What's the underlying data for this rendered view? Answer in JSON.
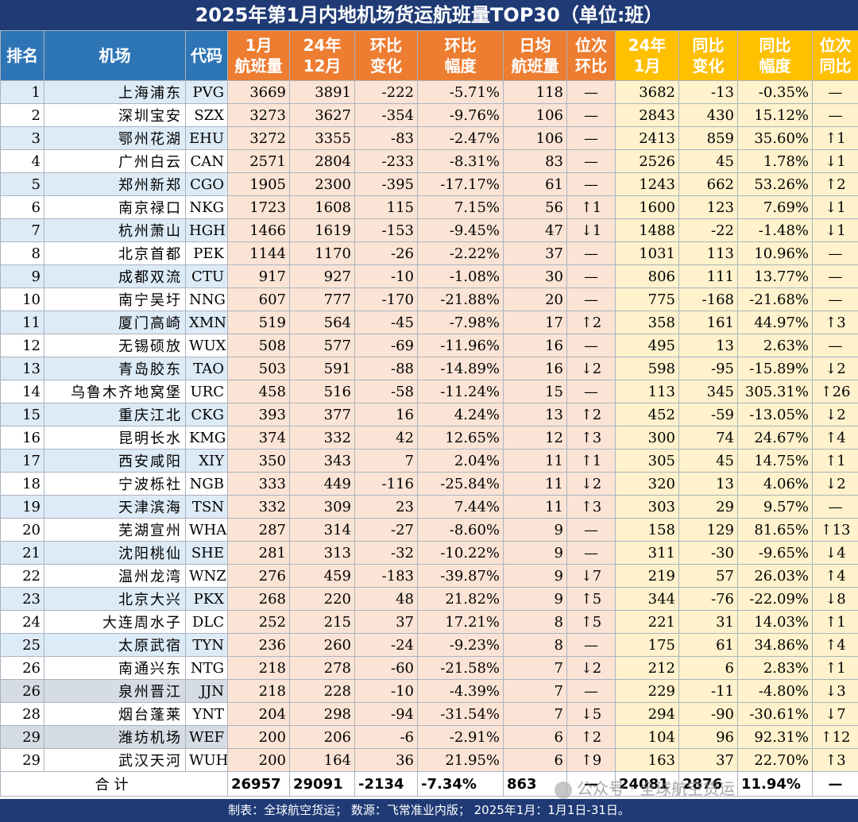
{
  "title": "2025年第1月内地机场货运航班量TOP30（单位:班）",
  "headers": [
    "排名",
    "机场",
    "代码",
    "1月|航班量",
    "24年|12月",
    "环比|变化",
    "环比|幅度",
    "日均|航班量",
    "位次|环比",
    "24年|1月",
    "同比|变化",
    "同比|幅度",
    "位次|同比"
  ],
  "rows": [
    {
      "rank": "1",
      "name": "上海浦东",
      "code": "PVG",
      "jan": "3669",
      "dec": "3891",
      "mom_chg": "-222",
      "mom_pct": "-5.71%",
      "daily": "118",
      "mom_rank": "—",
      "jan24": "3682",
      "yoy_chg": "-13",
      "yoy_pct": "-0.35%",
      "yoy_rank": "—"
    },
    {
      "rank": "2",
      "name": "深圳宝安",
      "code": "SZX",
      "jan": "3273",
      "dec": "3627",
      "mom_chg": "-354",
      "mom_pct": "-9.76%",
      "daily": "106",
      "mom_rank": "—",
      "jan24": "2843",
      "yoy_chg": "430",
      "yoy_pct": "15.12%",
      "yoy_rank": "—"
    },
    {
      "rank": "3",
      "name": "鄂州花湖",
      "code": "EHU",
      "jan": "3272",
      "dec": "3355",
      "mom_chg": "-83",
      "mom_pct": "-2.47%",
      "daily": "106",
      "mom_rank": "—",
      "jan24": "2413",
      "yoy_chg": "859",
      "yoy_pct": "35.60%",
      "yoy_rank": "↑1"
    },
    {
      "rank": "4",
      "name": "广州白云",
      "code": "CAN",
      "jan": "2571",
      "dec": "2804",
      "mom_chg": "-233",
      "mom_pct": "-8.31%",
      "daily": "83",
      "mom_rank": "—",
      "jan24": "2526",
      "yoy_chg": "45",
      "yoy_pct": "1.78%",
      "yoy_rank": "↓1"
    },
    {
      "rank": "5",
      "name": "郑州新郑",
      "code": "CGO",
      "jan": "1905",
      "dec": "2300",
      "mom_chg": "-395",
      "mom_pct": "-17.17%",
      "daily": "61",
      "mom_rank": "—",
      "jan24": "1243",
      "yoy_chg": "662",
      "yoy_pct": "53.26%",
      "yoy_rank": "↑2"
    },
    {
      "rank": "6",
      "name": "南京禄口",
      "code": "NKG",
      "jan": "1723",
      "dec": "1608",
      "mom_chg": "115",
      "mom_pct": "7.15%",
      "daily": "56",
      "mom_rank": "↑1",
      "jan24": "1600",
      "yoy_chg": "123",
      "yoy_pct": "7.69%",
      "yoy_rank": "↓1"
    },
    {
      "rank": "7",
      "name": "杭州萧山",
      "code": "HGH",
      "jan": "1466",
      "dec": "1619",
      "mom_chg": "-153",
      "mom_pct": "-9.45%",
      "daily": "47",
      "mom_rank": "↓1",
      "jan24": "1488",
      "yoy_chg": "-22",
      "yoy_pct": "-1.48%",
      "yoy_rank": "↓1"
    },
    {
      "rank": "8",
      "name": "北京首都",
      "code": "PEK",
      "jan": "1144",
      "dec": "1170",
      "mom_chg": "-26",
      "mom_pct": "-2.22%",
      "daily": "37",
      "mom_rank": "—",
      "jan24": "1031",
      "yoy_chg": "113",
      "yoy_pct": "10.96%",
      "yoy_rank": "—"
    },
    {
      "rank": "9",
      "name": "成都双流",
      "code": "CTU",
      "jan": "917",
      "dec": "927",
      "mom_chg": "-10",
      "mom_pct": "-1.08%",
      "daily": "30",
      "mom_rank": "—",
      "jan24": "806",
      "yoy_chg": "111",
      "yoy_pct": "13.77%",
      "yoy_rank": "—"
    },
    {
      "rank": "10",
      "name": "南宁吴圩",
      "code": "NNG",
      "jan": "607",
      "dec": "777",
      "mom_chg": "-170",
      "mom_pct": "-21.88%",
      "daily": "20",
      "mom_rank": "—",
      "jan24": "775",
      "yoy_chg": "-168",
      "yoy_pct": "-21.68%",
      "yoy_rank": "—"
    },
    {
      "rank": "11",
      "name": "厦门高崎",
      "code": "XMN",
      "jan": "519",
      "dec": "564",
      "mom_chg": "-45",
      "mom_pct": "-7.98%",
      "daily": "17",
      "mom_rank": "↑2",
      "jan24": "358",
      "yoy_chg": "161",
      "yoy_pct": "44.97%",
      "yoy_rank": "↑3"
    },
    {
      "rank": "12",
      "name": "无锡硕放",
      "code": "WUX",
      "jan": "508",
      "dec": "577",
      "mom_chg": "-69",
      "mom_pct": "-11.96%",
      "daily": "16",
      "mom_rank": "—",
      "jan24": "495",
      "yoy_chg": "13",
      "yoy_pct": "2.63%",
      "yoy_rank": "—"
    },
    {
      "rank": "13",
      "name": "青岛胶东",
      "code": "TAO",
      "jan": "503",
      "dec": "591",
      "mom_chg": "-88",
      "mom_pct": "-14.89%",
      "daily": "16",
      "mom_rank": "↓2",
      "jan24": "598",
      "yoy_chg": "-95",
      "yoy_pct": "-15.89%",
      "yoy_rank": "↓2"
    },
    {
      "rank": "14",
      "name": "乌鲁木齐地窝堡",
      "code": "URC",
      "jan": "458",
      "dec": "516",
      "mom_chg": "-58",
      "mom_pct": "-11.24%",
      "daily": "15",
      "mom_rank": "—",
      "jan24": "113",
      "yoy_chg": "345",
      "yoy_pct": "305.31%",
      "yoy_rank": "↑26"
    },
    {
      "rank": "15",
      "name": "重庆江北",
      "code": "CKG",
      "jan": "393",
      "dec": "377",
      "mom_chg": "16",
      "mom_pct": "4.24%",
      "daily": "13",
      "mom_rank": "↑2",
      "jan24": "452",
      "yoy_chg": "-59",
      "yoy_pct": "-13.05%",
      "yoy_rank": "↓2"
    },
    {
      "rank": "16",
      "name": "昆明长水",
      "code": "KMG",
      "jan": "374",
      "dec": "332",
      "mom_chg": "42",
      "mom_pct": "12.65%",
      "daily": "12",
      "mom_rank": "↑3",
      "jan24": "300",
      "yoy_chg": "74",
      "yoy_pct": "24.67%",
      "yoy_rank": "↑4"
    },
    {
      "rank": "17",
      "name": "西安咸阳",
      "code": "XIY",
      "jan": "350",
      "dec": "343",
      "mom_chg": "7",
      "mom_pct": "2.04%",
      "daily": "11",
      "mom_rank": "↑1",
      "jan24": "305",
      "yoy_chg": "45",
      "yoy_pct": "14.75%",
      "yoy_rank": "↑1"
    },
    {
      "rank": "18",
      "name": "宁波栎社",
      "code": "NGB",
      "jan": "333",
      "dec": "449",
      "mom_chg": "-116",
      "mom_pct": "-25.84%",
      "daily": "11",
      "mom_rank": "↓2",
      "jan24": "320",
      "yoy_chg": "13",
      "yoy_pct": "4.06%",
      "yoy_rank": "↓2"
    },
    {
      "rank": "19",
      "name": "天津滨海",
      "code": "TSN",
      "jan": "332",
      "dec": "309",
      "mom_chg": "23",
      "mom_pct": "7.44%",
      "daily": "11",
      "mom_rank": "↑3",
      "jan24": "303",
      "yoy_chg": "29",
      "yoy_pct": "9.57%",
      "yoy_rank": "—"
    },
    {
      "rank": "20",
      "name": "芜湖宣州",
      "code": "WHA",
      "jan": "287",
      "dec": "314",
      "mom_chg": "-27",
      "mom_pct": "-8.60%",
      "daily": "9",
      "mom_rank": "—",
      "jan24": "158",
      "yoy_chg": "129",
      "yoy_pct": "81.65%",
      "yoy_rank": "↑13"
    },
    {
      "rank": "21",
      "name": "沈阳桃仙",
      "code": "SHE",
      "jan": "281",
      "dec": "313",
      "mom_chg": "-32",
      "mom_pct": "-10.22%",
      "daily": "9",
      "mom_rank": "—",
      "jan24": "311",
      "yoy_chg": "-30",
      "yoy_pct": "-9.65%",
      "yoy_rank": "↓4"
    },
    {
      "rank": "22",
      "name": "温州龙湾",
      "code": "WNZ",
      "jan": "276",
      "dec": "459",
      "mom_chg": "-183",
      "mom_pct": "-39.87%",
      "daily": "9",
      "mom_rank": "↓7",
      "jan24": "219",
      "yoy_chg": "57",
      "yoy_pct": "26.03%",
      "yoy_rank": "↑4"
    },
    {
      "rank": "23",
      "name": "北京大兴",
      "code": "PKX",
      "jan": "268",
      "dec": "220",
      "mom_chg": "48",
      "mom_pct": "21.82%",
      "daily": "9",
      "mom_rank": "↑5",
      "jan24": "344",
      "yoy_chg": "-76",
      "yoy_pct": "-22.09%",
      "yoy_rank": "↓8"
    },
    {
      "rank": "24",
      "name": "大连周水子",
      "code": "DLC",
      "jan": "252",
      "dec": "215",
      "mom_chg": "37",
      "mom_pct": "17.21%",
      "daily": "8",
      "mom_rank": "↑5",
      "jan24": "221",
      "yoy_chg": "31",
      "yoy_pct": "14.03%",
      "yoy_rank": "↑1"
    },
    {
      "rank": "25",
      "name": "太原武宿",
      "code": "TYN",
      "jan": "236",
      "dec": "260",
      "mom_chg": "-24",
      "mom_pct": "-9.23%",
      "daily": "8",
      "mom_rank": "—",
      "jan24": "175",
      "yoy_chg": "61",
      "yoy_pct": "34.86%",
      "yoy_rank": "↑4"
    },
    {
      "rank": "26",
      "name": "南通兴东",
      "code": "NTG",
      "jan": "218",
      "dec": "278",
      "mom_chg": "-60",
      "mom_pct": "-21.58%",
      "daily": "7",
      "mom_rank": "↓2",
      "jan24": "212",
      "yoy_chg": "6",
      "yoy_pct": "2.83%",
      "yoy_rank": "↑1"
    },
    {
      "rank": "26",
      "name": "泉州晋江",
      "code": "JJN",
      "jan": "218",
      "dec": "228",
      "mom_chg": "-10",
      "mom_pct": "-4.39%",
      "daily": "7",
      "mom_rank": "—",
      "jan24": "229",
      "yoy_chg": "-11",
      "yoy_pct": "-4.80%",
      "yoy_rank": "↓3"
    },
    {
      "rank": "28",
      "name": "烟台蓬莱",
      "code": "YNT",
      "jan": "204",
      "dec": "298",
      "mom_chg": "-94",
      "mom_pct": "-31.54%",
      "daily": "7",
      "mom_rank": "↓5",
      "jan24": "294",
      "yoy_chg": "-90",
      "yoy_pct": "-30.61%",
      "yoy_rank": "↓7"
    },
    {
      "rank": "29",
      "name": "潍坊机场",
      "code": "WEF",
      "jan": "200",
      "dec": "206",
      "mom_chg": "-6",
      "mom_pct": "-2.91%",
      "daily": "6",
      "mom_rank": "↑2",
      "jan24": "104",
      "yoy_chg": "96",
      "yoy_pct": "92.31%",
      "yoy_rank": "↑12"
    },
    {
      "rank": "29",
      "name": "武汉天河",
      "code": "WUH",
      "jan": "200",
      "dec": "164",
      "mom_chg": "36",
      "mom_pct": "21.95%",
      "daily": "6",
      "mom_rank": "↑9",
      "jan24": "163",
      "yoy_chg": "37",
      "yoy_pct": "22.70%",
      "yoy_rank": "↑3"
    }
  ],
  "total": {
    "label": "合计",
    "jan": "26957",
    "dec": "29091",
    "mom_chg": "-2134",
    "mom_pct": "-7.34%",
    "daily": "863",
    "mom_rank": "—",
    "jan24": "24081",
    "yoy_chg": "2876",
    "yoy_pct": "11.94%",
    "yoy_rank": "—"
  },
  "footer": "制表：全球航空货运；  数源：飞常准业内版；  2025年1月：1月1日-31日。",
  "watermark": "公众号 · 全球航空货运",
  "colors": {
    "header_blue": "#2E75B6",
    "header_orange": "#ED7D31",
    "header_yellow": "#FFC000",
    "banner": "#1F3A75",
    "up": "#E01010",
    "down": "#3EA33E"
  }
}
